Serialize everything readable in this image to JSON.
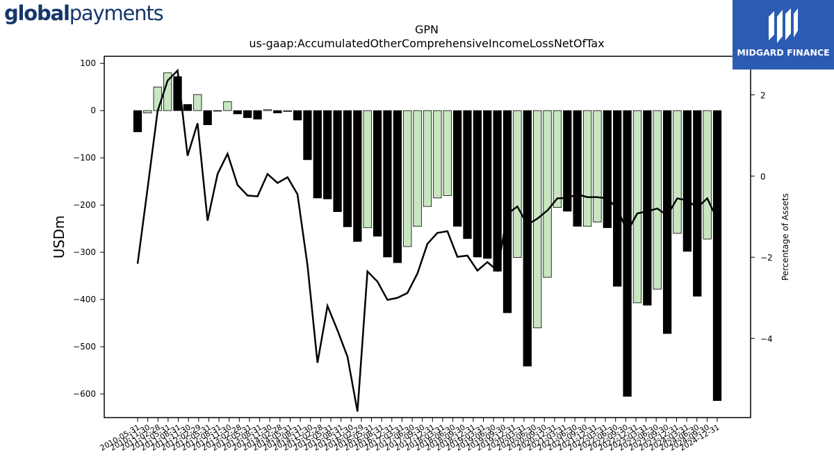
{
  "logos": {
    "left_bold": "global",
    "left_rest": "payments",
    "right_text": "MIDGARD FINANCE"
  },
  "colors": {
    "bar_positive_change": "#c8e6c0",
    "bar_negative_change": "#000000",
    "line": "#000000",
    "brand_right": "#2b5bb3",
    "brand_left": "#14366b"
  },
  "chart_data": {
    "type": "bar",
    "title": "GPN",
    "subtitle": "us-gaap:AccumulatedOtherComprehensiveIncomeLossNetOfTax",
    "ylabel": "USDm",
    "y2label": "Percentage of Assets",
    "ylim": [
      -650,
      115
    ],
    "y2lim": [
      -5.95,
      2.95
    ],
    "yticks": [
      100,
      0,
      -100,
      -200,
      -300,
      -400,
      -500,
      -600
    ],
    "y2ticks": [
      2,
      0,
      -2,
      -4
    ],
    "grid": false,
    "legend": "none",
    "x": [
      "2010-05-31",
      "2010-08-31",
      "2010-11-30",
      "2011-02-28",
      "2011-05-31",
      "2011-08-31",
      "2011-11-30",
      "2012-02-29",
      "2012-05-31",
      "2012-08-31",
      "2012-11-30",
      "2013-02-28",
      "2013-05-31",
      "2013-08-31",
      "2013-11-30",
      "2014-02-28",
      "2014-05-31",
      "2014-08-31",
      "2014-11-30",
      "2015-02-28",
      "2015-05-31",
      "2015-08-31",
      "2015-11-30",
      "2016-02-29",
      "2016-05-31",
      "2016-08-31",
      "2016-12-31",
      "2017-03-31",
      "2017-06-30",
      "2017-09-30",
      "2017-12-31",
      "2018-03-31",
      "2018-06-30",
      "2018-09-30",
      "2018-12-31",
      "2019-03-31",
      "2019-06-30",
      "2019-09-30",
      "2019-12-31",
      "2020-03-31",
      "2020-06-30",
      "2020-09-30",
      "2020-12-31",
      "2021-03-31",
      "2021-06-30",
      "2021-09-30",
      "2021-12-31",
      "2022-03-31",
      "2022-06-30",
      "2022-09-30",
      "2022-12-31",
      "2023-03-31",
      "2023-06-30",
      "2023-09-30",
      "2023-12-31",
      "2024-03-31",
      "2024-06-30",
      "2024-09-30",
      "2024-12-31"
    ],
    "xticklabels": [
      "2010-05-31",
      "2010-11-30",
      "2011-02-28",
      "2011-05-31",
      "2011-08-31",
      "2011-11-30",
      "2012-02-29",
      "2012-05-31",
      "2012-08-31",
      "2012-11-30",
      "2013-02-28",
      "2013-05-31",
      "2013-08-31",
      "2013-11-30",
      "2014-02-28",
      "2014-05-31",
      "2014-08-31",
      "2014-11-30",
      "2015-02-28",
      "2015-05-31",
      "2015-08-31",
      "2015-11-30",
      "2016-02-29",
      "2016-05-31",
      "2016-08-31",
      "2016-12-31",
      "2017-03-31",
      "2017-06-30",
      "2017-09-30",
      "2017-12-31",
      "2018-03-31",
      "2018-06-30",
      "2018-09-30",
      "2018-12-31",
      "2019-03-31",
      "2019-06-30",
      "2019-09-30",
      "2019-12-31",
      "2020-03-31",
      "2020-06-30",
      "2020-09-30",
      "2020-12-31",
      "2021-03-31",
      "2021-06-30",
      "2021-09-30",
      "2021-12-31",
      "2022-03-31",
      "2022-06-30",
      "2022-09-30",
      "2022-12-31",
      "2023-03-31",
      "2023-06-30",
      "2023-09-30",
      "2023-12-31",
      "2024-03-31",
      "2024-06-30",
      "2024-09-30",
      "2024-12-31"
    ],
    "series": [
      {
        "type": "bar",
        "axis": "left",
        "values": [
          -45,
          -5,
          50,
          80,
          72,
          13,
          34,
          -30,
          0,
          19,
          -7,
          -15,
          -18,
          2,
          -5,
          -2,
          -20,
          -104,
          -185,
          -187,
          -214,
          -246,
          -277,
          -248,
          -266,
          -310,
          -322,
          -288,
          -245,
          -203,
          -185,
          -180,
          -245,
          -271,
          -310,
          -313,
          -340,
          -428,
          -311,
          -541,
          -460,
          -353,
          -205,
          -213,
          -245,
          -245,
          -236,
          -248,
          -372,
          -605,
          -407,
          -412,
          -378,
          -472,
          -260,
          -298,
          -393,
          -272,
          -614
        ]
      },
      {
        "type": "line",
        "axis": "right",
        "values": [
          -2.16,
          -0.3,
          1.6,
          2.35,
          2.6,
          0.5,
          1.3,
          -1.1,
          0.05,
          0.55,
          -0.22,
          -0.48,
          -0.5,
          0.05,
          -0.17,
          -0.03,
          -0.45,
          -2.2,
          -4.6,
          -3.2,
          -3.8,
          -4.45,
          -5.8,
          -2.35,
          -2.6,
          -3.05,
          -3.0,
          -2.88,
          -2.4,
          -1.67,
          -1.4,
          -1.36,
          -1.99,
          -1.96,
          -2.33,
          -2.12,
          -2.33,
          -0.93,
          -0.75,
          -1.2,
          -1.05,
          -0.85,
          -0.55,
          -0.54,
          -0.45,
          -0.52,
          -0.52,
          -0.55,
          -0.8,
          -1.37,
          -0.92,
          -0.87,
          -0.8,
          -0.97,
          -0.55,
          -0.6,
          -0.78,
          -0.55,
          -1.07
        ]
      }
    ]
  }
}
